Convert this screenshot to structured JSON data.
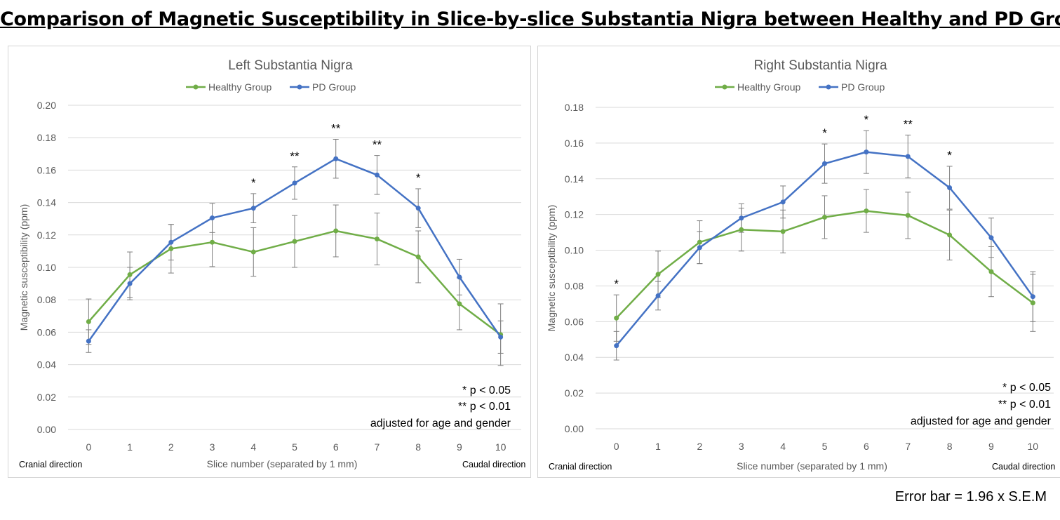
{
  "title": "Comparison of Magnetic Susceptibility in Slice-by-slice Substantia Nigra between Healthy and PD Groups",
  "footer_note": "Error bar = 1.96 x S.E.M",
  "colors": {
    "healthy": "#70ad47",
    "pd": "#4472c4",
    "grid": "#d9d9d9",
    "error_bar": "#7f7f7f",
    "axis_text": "#595959"
  },
  "chart_data": [
    {
      "type": "line",
      "title": "Left Substantia Nigra",
      "xlabel": "Slice number (separated by 1 mm)",
      "ylabel": "Magnetic susceptibility (ppm)",
      "x_left_note": "Cranial direction",
      "x_right_note": "Caudal direction",
      "categories": [
        "0",
        "1",
        "2",
        "3",
        "4",
        "5",
        "6",
        "7",
        "8",
        "9",
        "10"
      ],
      "ylim": [
        0,
        0.2
      ],
      "yticks": [
        "0.00",
        "0.02",
        "0.04",
        "0.06",
        "0.08",
        "0.10",
        "0.12",
        "0.14",
        "0.16",
        "0.18",
        "0.20"
      ],
      "legend": [
        "Healthy Group",
        "PD Group"
      ],
      "series": [
        {
          "name": "Healthy Group",
          "color": "#70ad47",
          "values": [
            0.0665,
            0.0955,
            0.1115,
            0.1155,
            0.1095,
            0.116,
            0.1225,
            0.1175,
            0.1065,
            0.0775,
            0.0585
          ],
          "errors": [
            0.014,
            0.014,
            0.015,
            0.015,
            0.015,
            0.016,
            0.016,
            0.016,
            0.016,
            0.016,
            0.019
          ]
        },
        {
          "name": "PD Group",
          "color": "#4472c4",
          "values": [
            0.0545,
            0.09,
            0.1155,
            0.1305,
            0.1365,
            0.152,
            0.167,
            0.157,
            0.1365,
            0.094,
            0.057
          ],
          "errors": [
            0.007,
            0.01,
            0.011,
            0.009,
            0.009,
            0.01,
            0.012,
            0.012,
            0.012,
            0.011,
            0.01
          ]
        }
      ],
      "significance": [
        "",
        "",
        "",
        "",
        "*",
        "**",
        "**",
        "**",
        "*",
        "",
        ""
      ],
      "notes": [
        "* p < 0.05",
        "** p < 0.01",
        "adjusted for age and gender"
      ]
    },
    {
      "type": "line",
      "title": "Right Substantia Nigra",
      "xlabel": "Slice number (separated by 1 mm)",
      "ylabel": "Magnetic susceptibility (ppm)",
      "x_left_note": "Cranial direction",
      "x_right_note": "Caudal direction",
      "categories": [
        "0",
        "1",
        "2",
        "3",
        "4",
        "5",
        "6",
        "7",
        "8",
        "9",
        "10"
      ],
      "ylim": [
        0,
        0.18
      ],
      "yticks": [
        "0.00",
        "0.02",
        "0.04",
        "0.06",
        "0.08",
        "0.10",
        "0.12",
        "0.14",
        "0.16",
        "0.18"
      ],
      "legend": [
        "Healthy Group",
        "PD Group"
      ],
      "series": [
        {
          "name": "Healthy Group",
          "color": "#70ad47",
          "values": [
            0.062,
            0.0865,
            0.1045,
            0.1115,
            0.1105,
            0.1185,
            0.122,
            0.1195,
            0.1085,
            0.088,
            0.0705
          ],
          "errors": [
            0.013,
            0.013,
            0.012,
            0.012,
            0.012,
            0.012,
            0.012,
            0.013,
            0.014,
            0.014,
            0.016
          ]
        },
        {
          "name": "PD Group",
          "color": "#4472c4",
          "values": [
            0.0465,
            0.0745,
            0.1015,
            0.118,
            0.127,
            0.1485,
            0.155,
            0.1525,
            0.135,
            0.107,
            0.074
          ],
          "errors": [
            0.008,
            0.008,
            0.009,
            0.008,
            0.009,
            0.011,
            0.012,
            0.012,
            0.012,
            0.011,
            0.014
          ]
        }
      ],
      "significance": [
        "*",
        "",
        "",
        "",
        "",
        "*",
        "*",
        "**",
        "*",
        "",
        ""
      ],
      "notes": [
        "* p < 0.05",
        "** p < 0.01",
        "adjusted for age and gender"
      ]
    }
  ]
}
